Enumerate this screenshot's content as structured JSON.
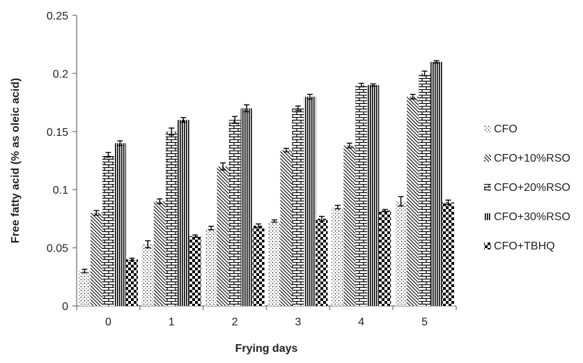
{
  "chart_data": {
    "type": "bar",
    "title": "",
    "xlabel": "Frying days",
    "ylabel": "Free fatty acid (% as oleic acid)",
    "categories": [
      "0",
      "1",
      "2",
      "3",
      "4",
      "5"
    ],
    "ylim": [
      0,
      0.25
    ],
    "yticks": [
      "0",
      "0.05",
      "0.1",
      "0.15",
      "0.2",
      "0.25"
    ],
    "grid": false,
    "legend_position": "right",
    "series": [
      {
        "name": "CFO",
        "pattern": "dots",
        "values": [
          0.03,
          0.053,
          0.067,
          0.073,
          0.085,
          0.09
        ],
        "errors": [
          0.0015,
          0.003,
          0.0015,
          0.001,
          0.0015,
          0.004
        ]
      },
      {
        "name": "CFO+10%RSO",
        "pattern": "diagonal",
        "values": [
          0.08,
          0.09,
          0.12,
          0.134,
          0.138,
          0.18
        ],
        "errors": [
          0.002,
          0.002,
          0.003,
          0.0015,
          0.002,
          0.002
        ]
      },
      {
        "name": "CFO+20%RSO",
        "pattern": "brick",
        "values": [
          0.13,
          0.15,
          0.16,
          0.17,
          0.19,
          0.2
        ],
        "errors": [
          0.002,
          0.003,
          0.003,
          0.002,
          0.0015,
          0.002
        ]
      },
      {
        "name": "CFO+30%RSO",
        "pattern": "vertical",
        "values": [
          0.14,
          0.16,
          0.17,
          0.18,
          0.19,
          0.21
        ],
        "errors": [
          0.002,
          0.002,
          0.003,
          0.002,
          0.001,
          0.001
        ]
      },
      {
        "name": "CFO+TBHQ",
        "pattern": "checker",
        "values": [
          0.04,
          0.06,
          0.069,
          0.075,
          0.082,
          0.089
        ],
        "errors": [
          0.001,
          0.001,
          0.0015,
          0.002,
          0.001,
          0.002
        ]
      }
    ],
    "colors": {
      "bar_stroke": "#000000",
      "axis": "#868686",
      "text": "#222222"
    }
  }
}
